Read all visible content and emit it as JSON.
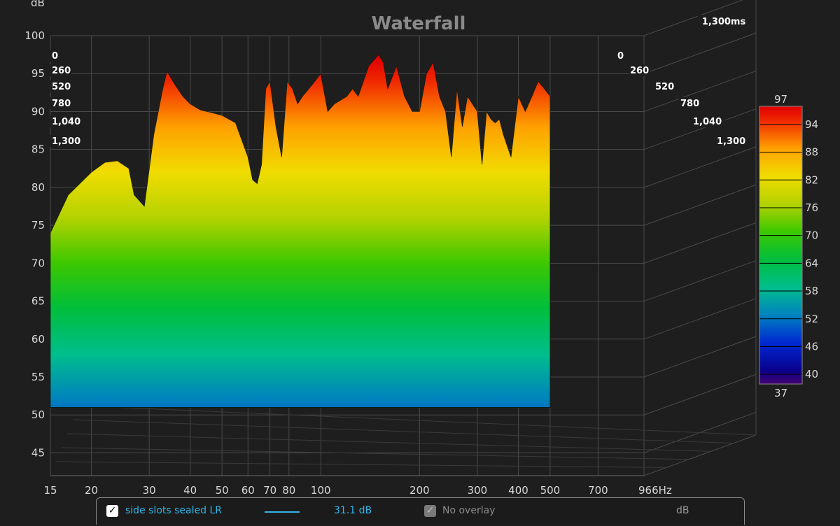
{
  "chart_data": {
    "type": "area",
    "title": "Waterfall",
    "ylabel": "dB",
    "xlabel": "Hz",
    "x_scale": "log",
    "xlim": [
      15,
      966
    ],
    "ylim": [
      42,
      100
    ],
    "x_ticks": [
      "15",
      "20",
      "30",
      "40",
      "50",
      "60",
      "70",
      "80",
      "100",
      "200",
      "300",
      "400",
      "500",
      "700",
      "966Hz"
    ],
    "x_tick_values": [
      15,
      20,
      30,
      40,
      50,
      60,
      70,
      80,
      100,
      200,
      300,
      400,
      500,
      700,
      966
    ],
    "y_ticks": [
      45,
      50,
      55,
      60,
      65,
      70,
      75,
      80,
      85,
      90,
      95,
      100
    ],
    "time_ticks": [
      "0",
      "260",
      "520",
      "780",
      "1,040",
      "1,300"
    ],
    "time_end_label": "1,300ms",
    "colorbar": {
      "min_label": "37",
      "max_label": "97",
      "ticks": [
        "94",
        "88",
        "82",
        "76",
        "70",
        "64",
        "58",
        "52",
        "46",
        "40"
      ],
      "tick_values": [
        94,
        88,
        82,
        76,
        70,
        64,
        58,
        52,
        46,
        40
      ],
      "range": [
        37,
        97
      ]
    },
    "series": [
      {
        "name": "side slots sealed LR",
        "slice_time_ms": 0,
        "x": [
          15,
          17,
          20,
          22,
          24,
          26,
          27,
          29,
          31,
          33,
          34,
          36,
          38,
          40,
          43,
          46,
          50,
          55,
          60,
          62,
          64,
          66,
          68,
          70,
          73,
          76,
          79,
          82,
          85,
          88,
          92,
          96,
          100,
          105,
          110,
          120,
          125,
          130,
          140,
          150,
          155,
          160,
          170,
          180,
          190,
          200,
          210,
          220,
          230,
          240,
          250,
          260,
          270,
          280,
          300,
          310,
          320,
          330,
          340,
          350,
          360,
          380,
          400,
          420,
          440,
          460,
          480,
          500
        ],
        "values": [
          74,
          79,
          82,
          83.3,
          83.5,
          82.5,
          79,
          77.5,
          87,
          93,
          95.3,
          93.5,
          92,
          91,
          90.2,
          89.9,
          89.5,
          88.5,
          84,
          81,
          80.5,
          83,
          93,
          94,
          88,
          84,
          94,
          93,
          91,
          92,
          93,
          94,
          95,
          90,
          91,
          92,
          93,
          92,
          96,
          97.5,
          96.5,
          93,
          96,
          92,
          90,
          90,
          95,
          96.5,
          92,
          90,
          84,
          93,
          88,
          92,
          90,
          83,
          90,
          89,
          88.5,
          89,
          87,
          84,
          92,
          90,
          92,
          94,
          93,
          92
        ]
      }
    ]
  },
  "legend": {
    "measurement_name": "side slots sealed LR",
    "measurement_value": "31.1 dB",
    "overlay_label": "No overlay",
    "unit_label": "dB",
    "checked_mark": "✓"
  },
  "colors": {
    "background": "#1e1e1e",
    "measurement_accent": "#31b6e8"
  }
}
